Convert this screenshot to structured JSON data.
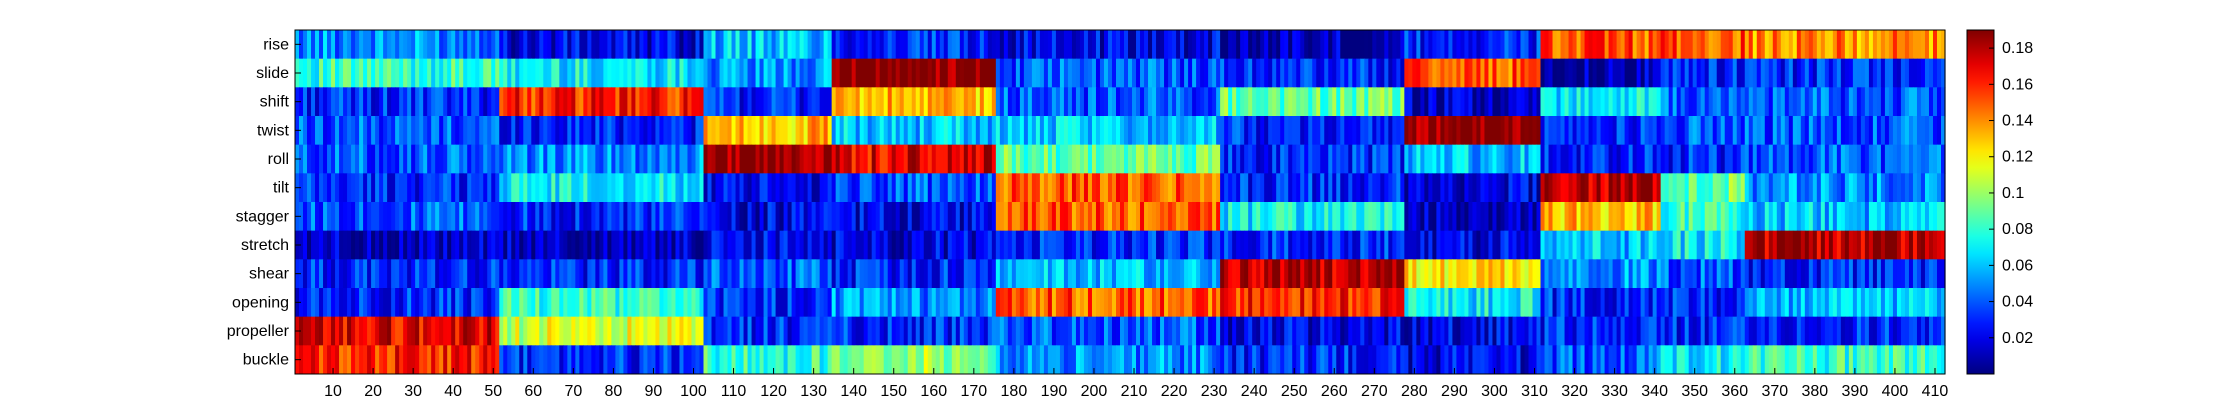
{
  "chart_data": {
    "type": "heatmap",
    "title": "",
    "xlabel": "",
    "ylabel": "",
    "rows": [
      "rise",
      "slide",
      "shift",
      "twist",
      "roll",
      "tilt",
      "stagger",
      "stretch",
      "shear",
      "opening",
      "propeller",
      "buckle"
    ],
    "x_range": [
      1,
      412
    ],
    "x_ticks": [
      10,
      20,
      30,
      40,
      50,
      60,
      70,
      80,
      90,
      100,
      110,
      120,
      130,
      140,
      150,
      160,
      170,
      180,
      190,
      200,
      210,
      220,
      230,
      240,
      250,
      260,
      270,
      280,
      290,
      300,
      310,
      320,
      330,
      340,
      350,
      360,
      370,
      380,
      390,
      400,
      410
    ],
    "colormap": "jet",
    "colorbar": {
      "range": [
        0.0,
        0.19
      ],
      "ticks": [
        0.02,
        0.04,
        0.06,
        0.08,
        0.1,
        0.12,
        0.14,
        0.16,
        0.18
      ],
      "tick_labels": [
        "0.02",
        "0.04",
        "0.06",
        "0.08",
        "0.1",
        "0.12",
        "0.14",
        "0.16",
        "0.18"
      ],
      "placement": "right"
    },
    "grid": false,
    "segments": [
      [
        1,
        51
      ],
      [
        52,
        102
      ],
      [
        103,
        134
      ],
      [
        135,
        175
      ],
      [
        176,
        231
      ],
      [
        232,
        277
      ],
      [
        278,
        311
      ],
      [
        312,
        341
      ],
      [
        342,
        362
      ],
      [
        363,
        412
      ]
    ],
    "values": [
      [
        0.05,
        0.02,
        0.06,
        0.03,
        0.02,
        0.01,
        0.03,
        0.15,
        0.15,
        0.14
      ],
      [
        0.08,
        0.07,
        0.05,
        0.19,
        0.04,
        0.03,
        0.15,
        0.01,
        0.03,
        0.03
      ],
      [
        0.03,
        0.16,
        0.03,
        0.13,
        0.04,
        0.09,
        0.01,
        0.07,
        0.04,
        0.04
      ],
      [
        0.04,
        0.03,
        0.13,
        0.06,
        0.06,
        0.03,
        0.19,
        0.03,
        0.04,
        0.04
      ],
      [
        0.04,
        0.05,
        0.19,
        0.17,
        0.09,
        0.03,
        0.06,
        0.03,
        0.03,
        0.04
      ],
      [
        0.03,
        0.07,
        0.02,
        0.04,
        0.15,
        0.03,
        0.02,
        0.18,
        0.09,
        0.05
      ],
      [
        0.04,
        0.03,
        0.02,
        0.02,
        0.15,
        0.07,
        0.01,
        0.13,
        0.08,
        0.06
      ],
      [
        0.01,
        0.01,
        0.02,
        0.02,
        0.03,
        0.03,
        0.02,
        0.06,
        0.07,
        0.18
      ],
      [
        0.03,
        0.03,
        0.04,
        0.03,
        0.06,
        0.18,
        0.12,
        0.05,
        0.04,
        0.03
      ],
      [
        0.03,
        0.08,
        0.03,
        0.05,
        0.15,
        0.16,
        0.07,
        0.03,
        0.03,
        0.06
      ],
      [
        0.17,
        0.11,
        0.03,
        0.03,
        0.04,
        0.02,
        0.02,
        0.03,
        0.03,
        0.03
      ],
      [
        0.16,
        0.03,
        0.08,
        0.1,
        0.05,
        0.03,
        0.02,
        0.04,
        0.07,
        0.08
      ]
    ]
  }
}
